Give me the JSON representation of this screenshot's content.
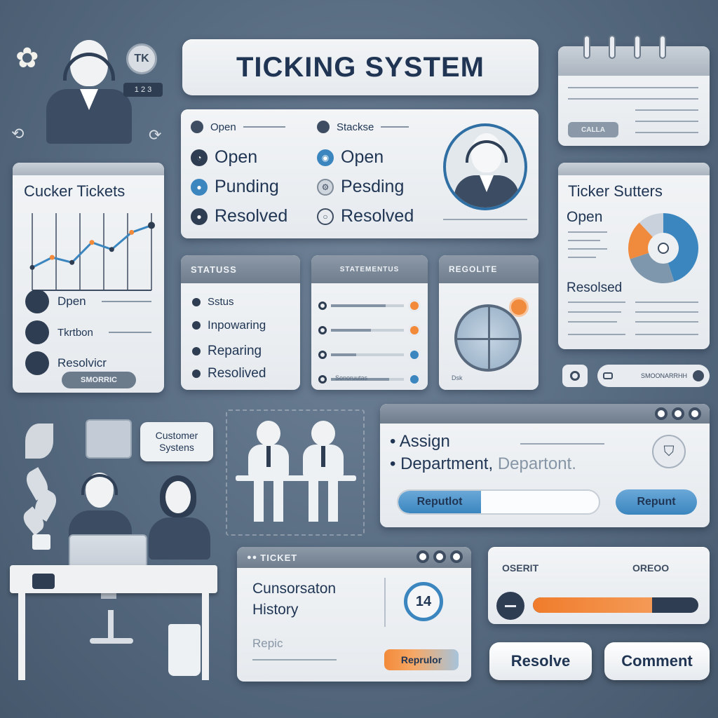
{
  "header": {
    "title": "TICKING SYSTEM"
  },
  "profile": {
    "badge_initials": "TK",
    "id_tag": "1 2 3"
  },
  "status_panel": {
    "left_items": [
      {
        "label": "Open",
        "small": true
      },
      {
        "label": "Open"
      },
      {
        "label": "Punding"
      },
      {
        "label": "Resolved"
      }
    ],
    "right_items": [
      {
        "label": "Stackse",
        "small": true
      },
      {
        "label": "Open"
      },
      {
        "label": "Pesding"
      },
      {
        "label": "Resolved"
      }
    ]
  },
  "customer_tickets": {
    "title": "Cucker Tickets",
    "chart_values": [
      2,
      3,
      2.5,
      4.5,
      3.8,
      5.5,
      6.2
    ],
    "rows": [
      "Dpen",
      "Tkrtbon",
      "Resolvicr"
    ],
    "button": "SMORRIC"
  },
  "calendar": {
    "button": "CALLA"
  },
  "ticket_status": {
    "title": "Ticker Sutters",
    "open_label": "Open",
    "resolved_label": "Resolsed",
    "pie": [
      {
        "label": "a",
        "value": 45,
        "color": "#3b86bf"
      },
      {
        "label": "b",
        "value": 25,
        "color": "#7f97ad"
      },
      {
        "label": "c",
        "value": 18,
        "color": "#f08a3c"
      },
      {
        "label": "d",
        "value": 12,
        "color": "#c9d2dc"
      }
    ]
  },
  "status_card": {
    "title": "STATUSS",
    "rows": [
      "Sstus",
      "Inpowaring",
      "Reparing",
      "Resolived"
    ]
  },
  "progress_card": {
    "title": "STATEMENTUS",
    "footer": "Sonoruutas"
  },
  "resolve_card": {
    "title": "REGOLITE",
    "footer": "Dsk"
  },
  "customer_bubble": {
    "text": "Customer Systens"
  },
  "assign_panel": {
    "line1": "Assign",
    "line2": "Department,",
    "line2b": "Departont.",
    "left_button": "Reputlot",
    "right_button": "Repunt"
  },
  "ticket_card": {
    "header": "TICKET",
    "line1": "Cunsorsaton",
    "line2": "History",
    "badge": "14",
    "sub": "Repic",
    "button": "Reprulor"
  },
  "slider_card": {
    "left_label": "OSERIT",
    "right_label": "OREOO",
    "value_pct": 72
  },
  "toggle_bar": {
    "label": "SMOONARRHH"
  },
  "actions": {
    "resolve": "Resolve",
    "comment": "Comment"
  },
  "colors": {
    "navy": "#1f3553",
    "orange": "#f28a3a",
    "blue": "#3b86bf",
    "bg": "#566a80"
  }
}
